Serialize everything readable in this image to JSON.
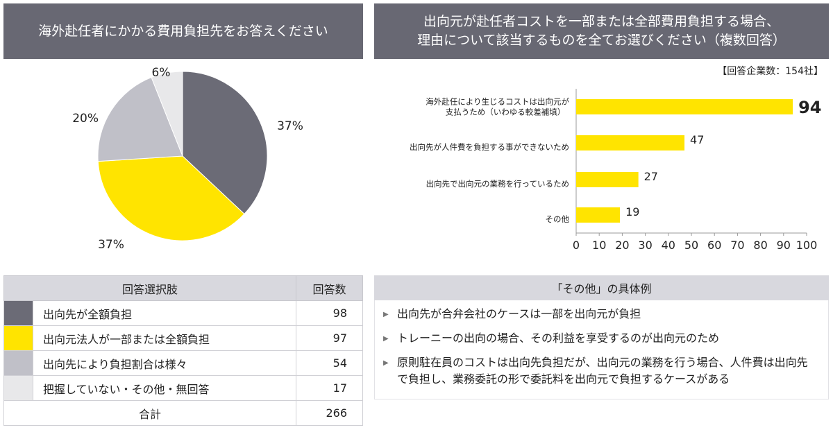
{
  "left_title": "海外赴任者にかかる費用負担先をお答えください",
  "right_title_line1": "出向元が赴任者コストを一部または全部費用負担する場合、",
  "right_title_line2": "理由について該当するものを全てお選びください（複数回答）",
  "respondents": "【回答企業数：154社】",
  "chart_data": [
    {
      "type": "pie",
      "slices": [
        {
          "label": "出向先が全額負担",
          "value": 37,
          "display": "37%",
          "color": "#6b6b76"
        },
        {
          "label": "出向元法人が一部または全額負担",
          "value": 37,
          "display": "37%",
          "color": "#ffe400"
        },
        {
          "label": "出向先により負担割合は様々",
          "value": 20,
          "display": "20%",
          "color": "#c0c0c8"
        },
        {
          "label": "把握していない・その他・無回答",
          "value": 6,
          "display": "6%",
          "color": "#e8e8ea"
        }
      ]
    },
    {
      "type": "bar",
      "orientation": "horizontal",
      "categories": [
        "海外赴任により生じるコストは出向元が支払うため（いわゆる較差補填）",
        "出向先が人件費を負担する事ができないため",
        "出向先で出向元の業務を行っているため",
        "その他"
      ],
      "category_lines": [
        [
          "海外赴任により生じるコストは出向元が",
          "支払うため（いわゆる較差補填）"
        ],
        [
          "出向先が人件費を負担する事ができないため"
        ],
        [
          "出向先で出向元の業務を行っているため"
        ],
        [
          "その他"
        ]
      ],
      "values": [
        94,
        47,
        27,
        19
      ],
      "xlim": [
        0,
        100
      ],
      "xticks": [
        0,
        10,
        20,
        30,
        40,
        50,
        60,
        70,
        80,
        90,
        100
      ],
      "bar_color": "#ffe400"
    }
  ],
  "table": {
    "headers": [
      "回答選択肢",
      "回答数"
    ],
    "rows": [
      {
        "label": "出向先が全額負担",
        "count": "98",
        "color": "#6b6b76"
      },
      {
        "label": "出向元法人が一部または全額負担",
        "count": "97",
        "color": "#ffe400"
      },
      {
        "label": "出向先により負担割合は様々",
        "count": "54",
        "color": "#c0c0c8"
      },
      {
        "label": "把握していない・その他・無回答",
        "count": "17",
        "color": "#e8e8ea"
      }
    ],
    "total_label": "合計",
    "total_count": "266"
  },
  "other": {
    "title": "「その他」の具体例",
    "items": [
      "出向先が合弁会社のケースは一部を出向元が負担",
      "トレーニーの出向の場合、その利益を享受するのが出向元のため",
      "原則駐在員のコストは出向先負担だが、出向元の業務を行う場合、人件費は出向先で負担し、業務委託の形で委託料を出向元で負担するケースがある"
    ]
  }
}
